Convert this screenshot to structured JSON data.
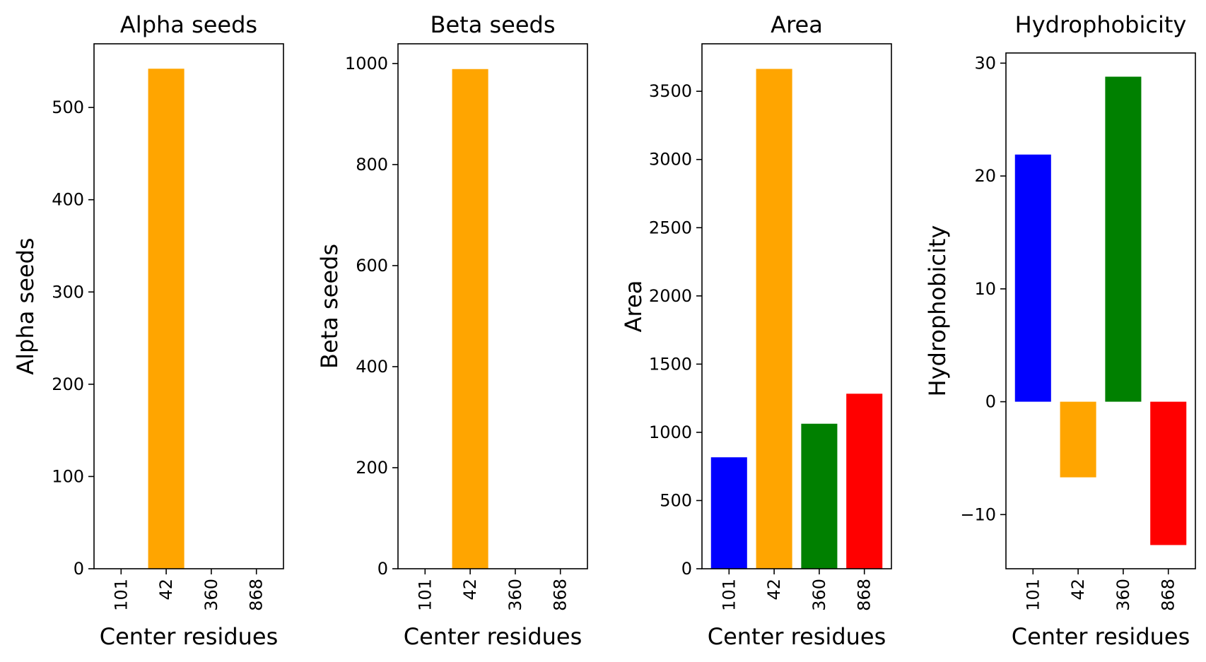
{
  "chart_data": [
    {
      "type": "bar",
      "title": "Alpha seeds",
      "xlabel": "Center residues",
      "ylabel": "Alpha seeds",
      "categories": [
        "101",
        "42",
        "360",
        "868"
      ],
      "values": [
        0,
        542,
        0,
        0
      ],
      "colors": [
        "#0000ff",
        "#ffa500",
        "#008000",
        "#ff0000"
      ],
      "ylim": [
        0,
        569
      ],
      "yticks": [
        0,
        100,
        200,
        300,
        400,
        500
      ],
      "ytick_labels": [
        "0",
        "100",
        "200",
        "300",
        "400",
        "500"
      ],
      "grid": false
    },
    {
      "type": "bar",
      "title": "Beta seeds",
      "xlabel": "Center residues",
      "ylabel": "Beta seeds",
      "categories": [
        "101",
        "42",
        "360",
        "868"
      ],
      "values": [
        0,
        989,
        0,
        0
      ],
      "colors": [
        "#0000ff",
        "#ffa500",
        "#008000",
        "#ff0000"
      ],
      "ylim": [
        0,
        1039
      ],
      "yticks": [
        0,
        200,
        400,
        600,
        800,
        1000
      ],
      "ytick_labels": [
        "0",
        "200",
        "400",
        "600",
        "800",
        "1000"
      ],
      "grid": false
    },
    {
      "type": "bar",
      "title": "Area",
      "xlabel": "Center residues",
      "ylabel": "Area",
      "categories": [
        "101",
        "42",
        "360",
        "868"
      ],
      "values": [
        817,
        3664,
        1063,
        1283
      ],
      "colors": [
        "#0000ff",
        "#ffa500",
        "#008000",
        "#ff0000"
      ],
      "ylim": [
        0,
        3848
      ],
      "yticks": [
        0,
        500,
        1000,
        1500,
        2000,
        2500,
        3000,
        3500
      ],
      "ytick_labels": [
        "0",
        "500",
        "1000",
        "1500",
        "2000",
        "2500",
        "3000",
        "3500"
      ],
      "grid": false
    },
    {
      "type": "bar",
      "title": "Hydrophobicity",
      "xlabel": "Center residues",
      "ylabel": "Hydrophobicity",
      "categories": [
        "101",
        "42",
        "360",
        "868"
      ],
      "values": [
        21.9,
        -6.7,
        28.8,
        -12.7
      ],
      "colors": [
        "#0000ff",
        "#ffa500",
        "#008000",
        "#ff0000"
      ],
      "ylim": [
        -14.8,
        30.9
      ],
      "yticks": [
        -10,
        0,
        10,
        20,
        30
      ],
      "ytick_labels": [
        "−10",
        "0",
        "10",
        "20",
        "30"
      ],
      "grid": false
    }
  ]
}
